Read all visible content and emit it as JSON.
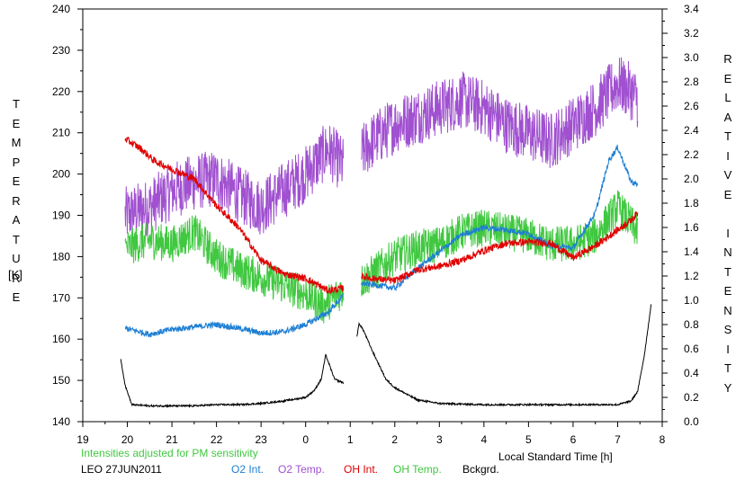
{
  "chart_data": {
    "type": "line",
    "station_date": "LEO 27JUN2011",
    "note": "Intensities adjusted for PM sensitivity",
    "xlabel": "Local Standard Time [h]",
    "x_tick_labels": [
      "19",
      "20",
      "21",
      "22",
      "23",
      "0",
      "1",
      "2",
      "3",
      "4",
      "5",
      "6",
      "7",
      "8"
    ],
    "xlim": [
      19,
      32
    ],
    "left_axis": {
      "label_letters": [
        "T",
        "E",
        "M",
        "P",
        "E",
        "R",
        "A",
        "T",
        "U",
        "R",
        "E"
      ],
      "unit": "[K]",
      "ylim": [
        140,
        240
      ],
      "tick_labels": [
        "140",
        "150",
        "160",
        "170",
        "180",
        "190",
        "200",
        "210",
        "220",
        "230",
        "240"
      ]
    },
    "right_axis": {
      "label_word1": [
        "R",
        "E",
        "L",
        "A",
        "T",
        "I",
        "V",
        "E"
      ],
      "label_word2": [
        "I",
        "N",
        "T",
        "E",
        "N",
        "S",
        "I",
        "T",
        "Y"
      ],
      "ylim": [
        0,
        3.4
      ],
      "tick_labels": [
        "0.0",
        "0.2",
        "0.4",
        "0.6",
        "0.8",
        "1.0",
        "1.2",
        "1.4",
        "1.6",
        "1.8",
        "2.0",
        "2.2",
        "2.4",
        "2.6",
        "2.8",
        "3.0",
        "3.2",
        "3.4"
      ]
    },
    "legend": [
      {
        "label": "O2 Int.",
        "color": "#1e7fd4"
      },
      {
        "label": "O2 Temp.",
        "color": "#a050d0"
      },
      {
        "label": "OH Int.",
        "color": "#e00000"
      },
      {
        "label": "OH Temp.",
        "color": "#40c840"
      },
      {
        "label": "Bckgrd.",
        "color": "#000000"
      }
    ],
    "note_color": "#40c840",
    "series": [
      {
        "name": "O2 Temp.",
        "axis": "left",
        "color": "#a050d0",
        "noise": 7,
        "segments": [
          [
            [
              19.95,
              190
            ],
            [
              20.5,
              192
            ],
            [
              21,
              196
            ],
            [
              21.5,
              198
            ],
            [
              22,
              199
            ],
            [
              22.5,
              195
            ],
            [
              23,
              192
            ],
            [
              23.5,
              196
            ],
            [
              24,
              200
            ],
            [
              24.5,
              206
            ],
            [
              24.85,
              202
            ]
          ],
          [
            [
              25.25,
              205
            ],
            [
              25.5,
              208
            ],
            [
              26,
              212
            ],
            [
              26.5,
              214
            ],
            [
              27,
              216
            ],
            [
              27.5,
              218
            ],
            [
              28,
              216
            ],
            [
              28.5,
              212
            ],
            [
              29,
              210
            ],
            [
              29.5,
              208
            ],
            [
              30,
              212
            ],
            [
              30.5,
              216
            ],
            [
              31,
              222
            ],
            [
              31.3,
              220
            ],
            [
              31.45,
              218
            ]
          ]
        ]
      },
      {
        "name": "OH Temp.",
        "axis": "left",
        "color": "#40c840",
        "noise": 4.5,
        "segments": [
          [
            [
              19.95,
              182
            ],
            [
              20.5,
              184
            ],
            [
              21,
              183
            ],
            [
              21.5,
              186
            ],
            [
              22,
              180
            ],
            [
              22.5,
              177
            ],
            [
              23,
              175
            ],
            [
              23.5,
              173
            ],
            [
              24,
              171
            ],
            [
              24.4,
              168
            ],
            [
              24.85,
              172
            ]
          ],
          [
            [
              25.25,
              174
            ],
            [
              25.5,
              176
            ],
            [
              26,
              180
            ],
            [
              26.5,
              182
            ],
            [
              27,
              183
            ],
            [
              27.5,
              186
            ],
            [
              28,
              187
            ],
            [
              28.5,
              186
            ],
            [
              29,
              185
            ],
            [
              29.5,
              183
            ],
            [
              30,
              183
            ],
            [
              30.5,
              185
            ],
            [
              31,
              192
            ],
            [
              31.3,
              188
            ],
            [
              31.45,
              186
            ]
          ]
        ]
      },
      {
        "name": "O2 Int.",
        "axis": "right",
        "color": "#1e7fd4",
        "noise": 0.025,
        "segments": [
          [
            [
              19.95,
              0.77
            ],
            [
              20.5,
              0.72
            ],
            [
              21,
              0.76
            ],
            [
              21.5,
              0.78
            ],
            [
              22,
              0.8
            ],
            [
              22.5,
              0.77
            ],
            [
              23,
              0.73
            ],
            [
              23.5,
              0.74
            ],
            [
              24,
              0.8
            ],
            [
              24.5,
              0.9
            ],
            [
              24.85,
              1.04
            ]
          ],
          [
            [
              25.25,
              1.14
            ],
            [
              25.5,
              1.13
            ],
            [
              26,
              1.1
            ],
            [
              26.5,
              1.26
            ],
            [
              27,
              1.4
            ],
            [
              27.5,
              1.54
            ],
            [
              28,
              1.6
            ],
            [
              28.5,
              1.58
            ],
            [
              29,
              1.55
            ],
            [
              29.5,
              1.45
            ],
            [
              30,
              1.43
            ],
            [
              30.5,
              1.72
            ],
            [
              30.8,
              2.15
            ],
            [
              31,
              2.26
            ],
            [
              31.3,
              1.98
            ],
            [
              31.45,
              1.95
            ]
          ]
        ]
      },
      {
        "name": "OH Int.",
        "axis": "right",
        "color": "#e00000",
        "noise": 0.03,
        "segments": [
          [
            [
              19.95,
              2.33
            ],
            [
              20.3,
              2.25
            ],
            [
              20.6,
              2.15
            ],
            [
              21,
              2.08
            ],
            [
              21.5,
              2.0
            ],
            [
              22,
              1.78
            ],
            [
              22.5,
              1.6
            ],
            [
              23,
              1.33
            ],
            [
              23.5,
              1.22
            ],
            [
              24,
              1.18
            ],
            [
              24.5,
              1.08
            ],
            [
              24.85,
              1.1
            ]
          ],
          [
            [
              25.25,
              1.2
            ],
            [
              25.5,
              1.18
            ],
            [
              26,
              1.16
            ],
            [
              26.5,
              1.25
            ],
            [
              27,
              1.28
            ],
            [
              27.5,
              1.33
            ],
            [
              28,
              1.41
            ],
            [
              28.5,
              1.47
            ],
            [
              29,
              1.48
            ],
            [
              29.5,
              1.47
            ],
            [
              30,
              1.35
            ],
            [
              30.5,
              1.45
            ],
            [
              31,
              1.58
            ],
            [
              31.3,
              1.66
            ],
            [
              31.45,
              1.72
            ]
          ]
        ]
      },
      {
        "name": "Bckgrd.",
        "axis": "right",
        "color": "#000000",
        "noise": 0.007,
        "segments": [
          [
            [
              19.85,
              0.52
            ],
            [
              19.95,
              0.3
            ],
            [
              20.1,
              0.14
            ],
            [
              20.5,
              0.13
            ],
            [
              21,
              0.13
            ],
            [
              21.5,
              0.13
            ],
            [
              22,
              0.14
            ],
            [
              22.5,
              0.14
            ],
            [
              23,
              0.15
            ],
            [
              23.5,
              0.17
            ],
            [
              24,
              0.2
            ],
            [
              24.2,
              0.26
            ],
            [
              24.35,
              0.35
            ],
            [
              24.45,
              0.55
            ],
            [
              24.55,
              0.45
            ],
            [
              24.65,
              0.35
            ],
            [
              24.85,
              0.32
            ]
          ],
          [
            [
              25.15,
              0.7
            ],
            [
              25.2,
              0.81
            ],
            [
              25.3,
              0.75
            ],
            [
              25.5,
              0.58
            ],
            [
              25.8,
              0.35
            ],
            [
              26,
              0.28
            ],
            [
              26.5,
              0.18
            ],
            [
              27,
              0.15
            ],
            [
              28,
              0.14
            ],
            [
              29,
              0.14
            ],
            [
              30,
              0.14
            ],
            [
              30.5,
              0.14
            ],
            [
              31,
              0.14
            ],
            [
              31.3,
              0.17
            ],
            [
              31.45,
              0.25
            ],
            [
              31.6,
              0.55
            ],
            [
              31.75,
              0.96
            ]
          ]
        ]
      }
    ]
  }
}
